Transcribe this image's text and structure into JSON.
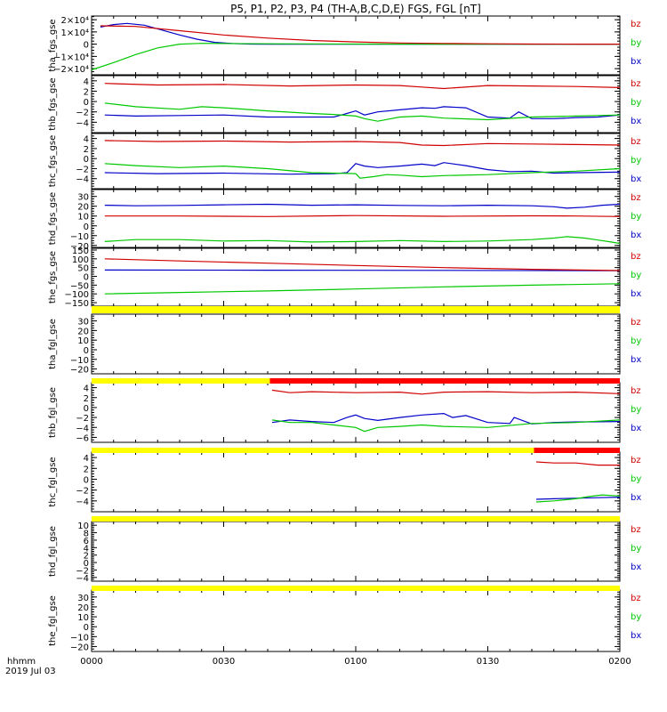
{
  "title": "P5, P1, P2, P3, P4 (TH-A,B,C,D,E) FGS, FGL [nT]",
  "time_label": "hhmm",
  "date_label": "2019 Jul 03",
  "colors": {
    "bz": "#d00000",
    "by": "#00c800",
    "bx": "#0000c8",
    "bar_yellow": "#ffff00",
    "bar_red": "#ff0000"
  },
  "chart_data": {
    "type": "line",
    "title": "P5, P1, P2, P3, P4 (TH-A,B,C,D,E) FGS, FGL [nT]",
    "x_ticks": [
      "0000",
      "0030",
      "0100",
      "0130",
      "0200"
    ],
    "x_range_min": [
      0,
      120
    ],
    "panels": [
      {
        "ylabel": "tha_fgs_gse",
        "yrange": [
          -25000,
          23000
        ],
        "ticks": [
          20000,
          10000,
          0,
          -10000,
          -20000
        ],
        "tick_labels": [
          "2×10⁴",
          "1×10⁴",
          "0",
          "−1×10⁴",
          "−2×10⁴"
        ],
        "legend": [
          "bz",
          "by",
          "bx"
        ],
        "series": [
          {
            "name": "bz",
            "x": [
              2,
              10,
              20,
              30,
              40,
              50,
              60,
              70,
              80,
              90,
              100,
              110,
              120
            ],
            "y": [
              15000,
              14500,
              11000,
              7500,
              5000,
              3000,
              1800,
              1000,
              600,
              300,
              100,
              0,
              0
            ]
          },
          {
            "name": "by",
            "x": [
              0,
              5,
              10,
              15,
              20,
              25,
              30,
              40,
              60,
              80,
              120
            ],
            "y": [
              -21000,
              -15000,
              -8500,
              -3000,
              0,
              700,
              500,
              300,
              100,
              0,
              0
            ]
          },
          {
            "name": "bx",
            "x": [
              2,
              5,
              8,
              12,
              16,
              20,
              24,
              28,
              32,
              36,
              40,
              60,
              120
            ],
            "y": [
              14000,
              16000,
              17000,
              15500,
              11500,
              7500,
              4000,
              1500,
              500,
              100,
              0,
              0,
              0
            ]
          }
        ]
      },
      {
        "ylabel": "thb_fgs_gse",
        "yrange": [
          -6,
          5
        ],
        "ticks": [
          4,
          2,
          0,
          -2,
          -4
        ],
        "legend": [
          "bz",
          "by",
          "bx"
        ],
        "series": [
          {
            "name": "bz",
            "x": [
              3,
              15,
              30,
              45,
              60,
              70,
              75,
              80,
              90,
              100,
              110,
              120
            ],
            "y": [
              3.5,
              3.2,
              3.3,
              3.0,
              3.2,
              3.1,
              2.8,
              2.5,
              3.1,
              3.0,
              2.9,
              2.7
            ]
          },
          {
            "name": "by",
            "x": [
              3,
              10,
              20,
              25,
              30,
              40,
              50,
              55,
              60,
              62,
              65,
              70,
              75,
              80,
              90,
              100,
              110,
              120
            ],
            "y": [
              -0.3,
              -1.0,
              -1.5,
              -1.0,
              -1.2,
              -1.8,
              -2.3,
              -2.5,
              -2.8,
              -3.3,
              -3.8,
              -3.0,
              -2.8,
              -3.2,
              -3.5,
              -3.0,
              -2.8,
              -2.6
            ]
          },
          {
            "name": "bx",
            "x": [
              3,
              10,
              20,
              30,
              40,
              50,
              55,
              58,
              60,
              62,
              65,
              70,
              75,
              78,
              80,
              85,
              90,
              95,
              97,
              100,
              105,
              108,
              110,
              115,
              120
            ],
            "y": [
              -2.6,
              -2.8,
              -2.7,
              -2.6,
              -3.0,
              -3.0,
              -3.0,
              -2.3,
              -1.8,
              -2.6,
              -2.0,
              -1.6,
              -1.2,
              -1.3,
              -1.0,
              -1.2,
              -3.0,
              -3.2,
              -2.0,
              -3.3,
              -3.3,
              -3.2,
              -3.1,
              -3.0,
              -2.6
            ]
          }
        ]
      },
      {
        "ylabel": "thc_fgs_gse",
        "yrange": [
          -6,
          5
        ],
        "ticks": [
          4,
          2,
          0,
          -2,
          -4
        ],
        "legend": [
          "bz",
          "by",
          "bx"
        ],
        "series": [
          {
            "name": "bz",
            "x": [
              3,
              15,
              30,
              45,
              60,
              70,
              75,
              80,
              90,
              100,
              110,
              120
            ],
            "y": [
              3.6,
              3.4,
              3.5,
              3.3,
              3.4,
              3.2,
              2.7,
              2.6,
              3.0,
              2.9,
              2.8,
              2.7
            ]
          },
          {
            "name": "by",
            "x": [
              3,
              10,
              20,
              30,
              40,
              50,
              55,
              60,
              61,
              64,
              67,
              70,
              75,
              80,
              90,
              100,
              110,
              120
            ],
            "y": [
              -1.0,
              -1.4,
              -1.8,
              -1.5,
              -2.0,
              -2.8,
              -2.9,
              -3.0,
              -3.9,
              -3.6,
              -3.2,
              -3.3,
              -3.6,
              -3.4,
              -3.2,
              -2.8,
              -2.5,
              -2.0
            ]
          },
          {
            "name": "bx",
            "x": [
              3,
              15,
              30,
              45,
              55,
              58,
              60,
              62,
              65,
              70,
              75,
              78,
              80,
              85,
              90,
              95,
              100,
              105,
              110,
              120
            ],
            "y": [
              -2.8,
              -3.0,
              -2.9,
              -3.1,
              -3.0,
              -2.8,
              -1.0,
              -1.5,
              -1.8,
              -1.5,
              -1.1,
              -1.4,
              -0.8,
              -1.4,
              -2.2,
              -2.6,
              -2.5,
              -2.9,
              -2.8,
              -2.7
            ]
          }
        ]
      },
      {
        "ylabel": "thd_fgs_gse",
        "yrange": [
          -22,
          37
        ],
        "ticks": [
          30,
          20,
          10,
          0,
          -10,
          -20
        ],
        "legend": [
          "bz",
          "by",
          "bx"
        ],
        "series": [
          {
            "name": "bz",
            "x": [
              3,
              20,
              40,
              60,
              80,
              100,
              110,
              120
            ],
            "y": [
              10.0,
              10.0,
              9.5,
              10.5,
              9.8,
              10.2,
              10.0,
              9.5
            ]
          },
          {
            "name": "by",
            "x": [
              3,
              10,
              20,
              30,
              40,
              50,
              60,
              70,
              80,
              90,
              100,
              105,
              108,
              112,
              115,
              118,
              120
            ],
            "y": [
              -16.0,
              -14.0,
              -14.0,
              -15.5,
              -15.0,
              -16.5,
              -16.0,
              -15.0,
              -16.0,
              -15.5,
              -14.0,
              -12.5,
              -11.0,
              -12.5,
              -14.5,
              -16.5,
              -18.0
            ]
          },
          {
            "name": "bx",
            "x": [
              3,
              10,
              20,
              30,
              40,
              50,
              60,
              70,
              80,
              90,
              100,
              105,
              108,
              112,
              116,
              120
            ],
            "y": [
              21.0,
              20.5,
              20.8,
              21.5,
              22.0,
              21.0,
              21.5,
              20.8,
              20.5,
              21.0,
              20.5,
              19.5,
              18.0,
              19.0,
              21.0,
              22.0
            ]
          }
        ]
      },
      {
        "ylabel": "the_fgs_gse",
        "yrange": [
          -170,
          160
        ],
        "ticks": [
          150,
          100,
          50,
          0,
          -50,
          -100,
          -150
        ],
        "legend": [
          "bz",
          "by",
          "bx"
        ],
        "series": [
          {
            "name": "bz",
            "x": [
              3,
              20,
              40,
              60,
              80,
              100,
              120
            ],
            "y": [
              100,
              88,
              75,
              62,
              50,
              40,
              33
            ]
          },
          {
            "name": "by",
            "x": [
              3,
              20,
              40,
              60,
              80,
              100,
              120
            ],
            "y": [
              -100,
              -92,
              -83,
              -72,
              -60,
              -50,
              -42
            ]
          },
          {
            "name": "bx",
            "x": [
              3,
              40,
              80,
              120
            ],
            "y": [
              36,
              35,
              34,
              32
            ]
          }
        ]
      },
      {
        "ylabel": "tha_fgl_gse",
        "yrange": [
          -25,
          37
        ],
        "ticks": [
          30,
          20,
          10,
          0,
          -10,
          -20
        ],
        "legend": [
          "bz",
          "by",
          "bx"
        ],
        "series": []
      },
      {
        "ylabel": "thb_fgl_gse",
        "yrange": [
          -7,
          5
        ],
        "ticks": [
          4,
          2,
          0,
          -2,
          -4,
          -6
        ],
        "legend": [
          "bz",
          "by",
          "bx"
        ],
        "series": [
          {
            "name": "bz",
            "x": [
              41,
              45,
              50,
              60,
              70,
              75,
              80,
              90,
              100,
              110,
              120
            ],
            "y": [
              3.5,
              3.0,
              3.2,
              3.0,
              3.1,
              2.7,
              3.1,
              3.2,
              3.0,
              3.1,
              2.8
            ]
          },
          {
            "name": "by",
            "x": [
              41,
              45,
              50,
              55,
              60,
              62,
              65,
              70,
              75,
              80,
              90,
              100,
              110,
              120
            ],
            "y": [
              -2.5,
              -3.0,
              -3.0,
              -3.5,
              -4.0,
              -4.8,
              -4.0,
              -3.8,
              -3.5,
              -3.8,
              -4.0,
              -3.2,
              -3.0,
              -2.5
            ]
          },
          {
            "name": "bx",
            "x": [
              41,
              45,
              50,
              55,
              58,
              60,
              62,
              65,
              70,
              75,
              80,
              82,
              85,
              90,
              95,
              96,
              100,
              105,
              110,
              120
            ],
            "y": [
              -3.0,
              -2.5,
              -2.8,
              -3.0,
              -2.0,
              -1.5,
              -2.2,
              -2.6,
              -2.0,
              -1.5,
              -1.2,
              -2.0,
              -1.6,
              -3.0,
              -3.2,
              -2.0,
              -3.3,
              -3.0,
              -2.9,
              -2.8
            ]
          }
        ]
      },
      {
        "ylabel": "thc_fgl_gse",
        "yrange": [
          -6,
          5
        ],
        "ticks": [
          4,
          2,
          0,
          -2,
          -4
        ],
        "legend": [
          "bz",
          "by",
          "bx"
        ],
        "series": [
          {
            "name": "bz",
            "x": [
              101,
              105,
              110,
              115,
              120
            ],
            "y": [
              3.2,
              3.0,
              3.0,
              2.6,
              2.6
            ]
          },
          {
            "name": "by",
            "x": [
              101,
              105,
              110,
              113,
              116,
              120
            ],
            "y": [
              -4.2,
              -4.0,
              -3.6,
              -3.2,
              -2.9,
              -3.1
            ]
          },
          {
            "name": "bx",
            "x": [
              101,
              105,
              110,
              115,
              120
            ],
            "y": [
              -3.7,
              -3.6,
              -3.5,
              -3.4,
              -3.3
            ]
          }
        ]
      },
      {
        "ylabel": "thd_fgl_gse",
        "yrange": [
          -5,
          11
        ],
        "ticks": [
          10,
          8,
          6,
          4,
          2,
          0,
          -2,
          -4
        ],
        "legend": [
          "bz",
          "by",
          "bx"
        ],
        "series": []
      },
      {
        "ylabel": "the_fgl_gse",
        "yrange": [
          -25,
          37
        ],
        "ticks": [
          30,
          20,
          10,
          0,
          -10,
          -20
        ],
        "legend": [
          "bz",
          "by",
          "bx"
        ],
        "series": []
      }
    ],
    "availability_bars": [
      {
        "segments": [
          {
            "color": "yellow",
            "x0": 0,
            "x1": 120
          }
        ]
      },
      {
        "segments": [
          {
            "color": "yellow",
            "x0": 0,
            "x1": 40.5
          },
          {
            "color": "red",
            "x0": 40.5,
            "x1": 120
          }
        ]
      },
      {
        "segments": [
          {
            "color": "yellow",
            "x0": 0,
            "x1": 100.5
          },
          {
            "color": "red",
            "x0": 100.5,
            "x1": 120
          }
        ]
      },
      {
        "segments": [
          {
            "color": "yellow",
            "x0": 0,
            "x1": 120
          }
        ]
      },
      {
        "segments": [
          {
            "color": "yellow",
            "x0": 0,
            "x1": 120
          }
        ]
      }
    ]
  }
}
